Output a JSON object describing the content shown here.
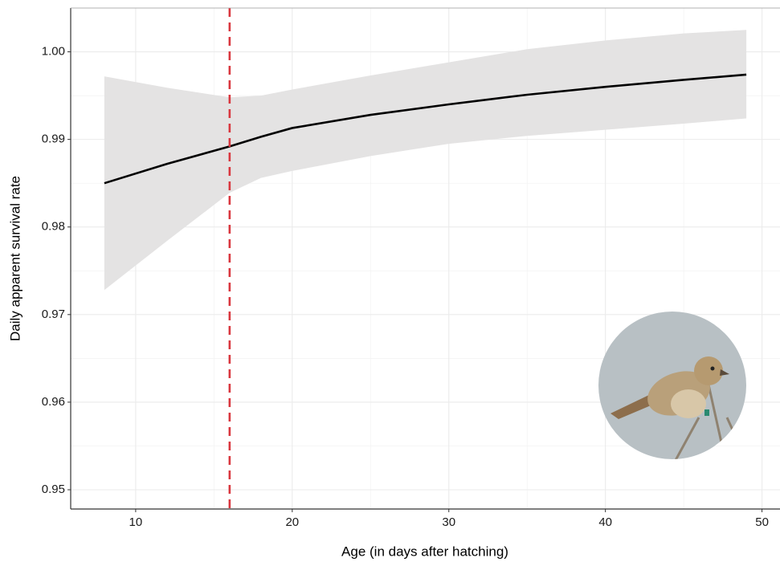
{
  "chart_data": {
    "type": "line",
    "x_label": "Age (in days after hatching)",
    "y_label": "Daily apparent survival rate",
    "x": [
      8,
      12,
      16,
      18,
      20,
      25,
      30,
      35,
      40,
      45,
      49
    ],
    "values": [
      0.985,
      0.9872,
      0.9892,
      0.9903,
      0.9913,
      0.9928,
      0.994,
      0.9951,
      0.996,
      0.9968,
      0.9974
    ],
    "color": "#000000",
    "band": {
      "lower": [
        0.9728,
        0.9784,
        0.9839,
        0.9856,
        0.9864,
        0.9881,
        0.9895,
        0.9904,
        0.9911,
        0.9918,
        0.9924
      ],
      "upper": [
        0.9972,
        0.9959,
        0.9948,
        0.995,
        0.9957,
        0.9973,
        0.9988,
        1.0003,
        1.0013,
        1.0021,
        1.0025
      ],
      "color": "#e4e3e3"
    },
    "vline": {
      "x": 16,
      "color": "#d9363e"
    },
    "xlim": [
      5.85,
      51.15
    ],
    "ylim": [
      0.9478,
      1.005
    ],
    "xticks": [
      10,
      20,
      30,
      40,
      50
    ],
    "yticks": [
      {
        "value": 1,
        "label": "1.00"
      },
      0.99,
      0.98,
      0.97,
      0.96,
      0.95
    ],
    "grid": true
  }
}
